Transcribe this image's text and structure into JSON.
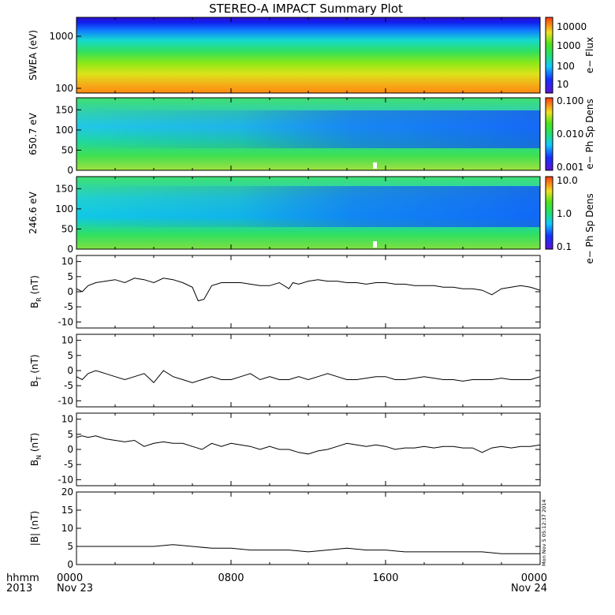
{
  "title": "STEREO-A IMPACT Summary Plot",
  "footer": {
    "time_label": "hhmm",
    "year_label": "2013",
    "x_ticks": [
      {
        "hour": 0,
        "time": "0000",
        "date": "Nov 23"
      },
      {
        "hour": 8,
        "time": "0800",
        "date": ""
      },
      {
        "hour": 16,
        "time": "1600",
        "date": ""
      },
      {
        "hour": 24,
        "time": "0000",
        "date": "Nov 24"
      }
    ],
    "timestamp": "Mon Nov  5 05:12:37 2014"
  },
  "chart_data": [
    {
      "type": "heatmap",
      "ylabel": "SWEA (eV)",
      "y_scale": "log",
      "yticks": [
        "1000",
        "100"
      ],
      "colorbar": {
        "label": "e− Flux",
        "ticks": [
          "10000",
          "1000",
          "100",
          "10"
        ]
      },
      "note": "energy spectrogram, flux high (orange) at ~100 eV, decreasing to blue at ~1500 eV"
    },
    {
      "type": "heatmap",
      "ylabel": "650.7 eV",
      "yticks": [
        "150",
        "100",
        "50",
        "0"
      ],
      "ylim": [
        0,
        180
      ],
      "colorbar": {
        "label": "e− Ph Sp Dens",
        "ticks": [
          "0.100",
          "0.010",
          "0.001"
        ]
      }
    },
    {
      "type": "heatmap",
      "ylabel": "246.6 eV",
      "yticks": [
        "150",
        "100",
        "50",
        "0"
      ],
      "ylim": [
        0,
        180
      ],
      "colorbar": {
        "label": "e− Ph Sp Dens",
        "ticks": [
          "10.0",
          "1.0",
          "0.1"
        ]
      }
    },
    {
      "type": "line",
      "ylabel": "B_R (nT)",
      "ylabel_main": "B",
      "ylabel_sub": "R",
      "ylabel_rest": " (nT)",
      "ylim": [
        -12,
        12
      ],
      "yticks": [
        10,
        5,
        0,
        -5,
        -10
      ],
      "x": [
        0,
        0.3,
        0.6,
        1,
        1.5,
        2,
        2.5,
        3,
        3.5,
        4,
        4.5,
        5,
        5.5,
        6,
        6.3,
        6.6,
        7,
        7.5,
        8,
        8.5,
        9,
        9.5,
        10,
        10.5,
        11,
        11.2,
        11.5,
        12,
        12.5,
        13,
        13.5,
        14,
        14.5,
        15,
        15.5,
        16,
        16.5,
        17,
        17.5,
        18,
        18.5,
        19,
        19.5,
        20,
        20.5,
        21,
        21.5,
        22,
        22.5,
        23,
        23.5,
        24
      ],
      "y": [
        1,
        0,
        2,
        3,
        3.5,
        4,
        3,
        4.5,
        4,
        3,
        4.5,
        4,
        3,
        1.5,
        -3,
        -2.5,
        2,
        3,
        3,
        3,
        2.5,
        2,
        2,
        3,
        1,
        3,
        2.5,
        3.5,
        4,
        3.5,
        3.5,
        3,
        3,
        2.5,
        3,
        3,
        2.5,
        2.5,
        2,
        2,
        2,
        1.5,
        1.5,
        1,
        1,
        0.5,
        -1,
        1,
        1.5,
        2,
        1.5,
        0.5
      ]
    },
    {
      "type": "line",
      "ylabel": "B_T (nT)",
      "ylabel_main": "B",
      "ylabel_sub": "T",
      "ylabel_rest": " (nT)",
      "ylim": [
        -12,
        12
      ],
      "yticks": [
        10,
        5,
        0,
        -5,
        -10
      ],
      "x": [
        0,
        0.3,
        0.6,
        1,
        1.5,
        2,
        2.5,
        3,
        3.5,
        4,
        4.5,
        5,
        5.5,
        6,
        6.5,
        7,
        7.5,
        8,
        8.5,
        9,
        9.5,
        10,
        10.5,
        11,
        11.5,
        12,
        12.5,
        13,
        13.5,
        14,
        14.5,
        15,
        15.5,
        16,
        16.5,
        17,
        17.5,
        18,
        18.5,
        19,
        19.5,
        20,
        20.5,
        21,
        21.5,
        22,
        22.5,
        23,
        23.5,
        24
      ],
      "y": [
        -2,
        -3,
        -1,
        0,
        -1,
        -2,
        -3,
        -2,
        -1,
        -4,
        0,
        -2,
        -3,
        -4,
        -3,
        -2,
        -3,
        -3,
        -2,
        -1,
        -3,
        -2,
        -3,
        -3,
        -2,
        -3,
        -2,
        -1,
        -2,
        -3,
        -3,
        -2.5,
        -2,
        -2,
        -3,
        -3,
        -2.5,
        -2,
        -2.5,
        -3,
        -3,
        -3.5,
        -3,
        -3,
        -3,
        -2.5,
        -3,
        -3,
        -3,
        -2
      ]
    },
    {
      "type": "line",
      "ylabel": "B_N (nT)",
      "ylabel_main": "B",
      "ylabel_sub": "N",
      "ylabel_rest": " (nT)",
      "ylim": [
        -12,
        12
      ],
      "yticks": [
        10,
        5,
        0,
        -5,
        -10
      ],
      "x": [
        0,
        0.3,
        0.6,
        1,
        1.5,
        2,
        2.5,
        3,
        3.5,
        4,
        4.5,
        5,
        5.5,
        6,
        6.5,
        7,
        7.5,
        8,
        8.5,
        9,
        9.5,
        10,
        10.5,
        11,
        11.5,
        12,
        12.5,
        13,
        13.5,
        14,
        14.5,
        15,
        15.5,
        16,
        16.5,
        17,
        17.5,
        18,
        18.5,
        19,
        19.5,
        20,
        20.5,
        21,
        21.5,
        22,
        22.5,
        23,
        23.5,
        24
      ],
      "y": [
        4,
        4.5,
        4,
        4.5,
        3.5,
        3,
        2.5,
        3,
        1,
        2,
        2.5,
        2,
        2,
        1,
        0,
        2,
        1,
        2,
        1.5,
        1,
        0,
        1,
        0,
        0,
        -1,
        -1.5,
        -0.5,
        0,
        1,
        2,
        1.5,
        1,
        1.5,
        1,
        0,
        0.5,
        0.5,
        1,
        0.5,
        1,
        1,
        0.5,
        0.5,
        -1,
        0.5,
        1,
        0.5,
        1,
        1,
        1.5
      ]
    },
    {
      "type": "line",
      "ylabel": "|B| (nT)",
      "ylim": [
        0,
        20
      ],
      "yticks": [
        20,
        15,
        10,
        5,
        0
      ],
      "x": [
        0,
        1,
        2,
        3,
        4,
        5,
        6,
        7,
        8,
        9,
        10,
        11,
        12,
        13,
        14,
        15,
        16,
        17,
        18,
        19,
        20,
        21,
        22,
        23,
        24
      ],
      "y": [
        5,
        5,
        5,
        5,
        5,
        5.5,
        5,
        4.5,
        4.5,
        4,
        4,
        4,
        3.5,
        4,
        4.5,
        4,
        4,
        3.5,
        3.5,
        3.5,
        3.5,
        3.5,
        3,
        3,
        3
      ]
    }
  ]
}
